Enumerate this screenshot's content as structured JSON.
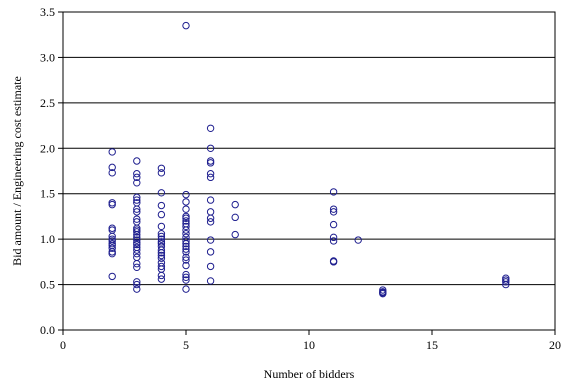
{
  "chart_data": {
    "type": "scatter",
    "title": "",
    "xlabel": "Number of bidders",
    "ylabel": "Bid amount / Engineering cost estimate",
    "xlim": [
      0,
      20
    ],
    "ylim": [
      0,
      3.5
    ],
    "xticks": [
      0,
      5,
      10,
      15,
      20
    ],
    "yticks": [
      0.0,
      0.5,
      1.0,
      1.5,
      2.0,
      2.5,
      3.0,
      3.5
    ],
    "xtick_labels": [
      "0",
      "5",
      "10",
      "15",
      "20"
    ],
    "ytick_labels": [
      "0.0",
      "0.5",
      "1.0",
      "1.5",
      "2.0",
      "2.5",
      "3.0",
      "3.5"
    ],
    "grid": "horizontal",
    "legend": "none",
    "marker": "open-circle",
    "marker_color": "#1f1f8f",
    "points": [
      {
        "x": 2,
        "y": 1.96
      },
      {
        "x": 2,
        "y": 1.79
      },
      {
        "x": 2,
        "y": 1.73
      },
      {
        "x": 2,
        "y": 1.4
      },
      {
        "x": 2,
        "y": 1.38
      },
      {
        "x": 2,
        "y": 1.12
      },
      {
        "x": 2,
        "y": 1.1
      },
      {
        "x": 2,
        "y": 1.03
      },
      {
        "x": 2,
        "y": 1.0
      },
      {
        "x": 2,
        "y": 0.98
      },
      {
        "x": 2,
        "y": 0.95
      },
      {
        "x": 2,
        "y": 0.93
      },
      {
        "x": 2,
        "y": 0.9
      },
      {
        "x": 2,
        "y": 0.86
      },
      {
        "x": 2,
        "y": 0.84
      },
      {
        "x": 2,
        "y": 0.59
      },
      {
        "x": 3,
        "y": 1.86
      },
      {
        "x": 3,
        "y": 1.72
      },
      {
        "x": 3,
        "y": 1.68
      },
      {
        "x": 3,
        "y": 1.62
      },
      {
        "x": 3,
        "y": 1.46
      },
      {
        "x": 3,
        "y": 1.43
      },
      {
        "x": 3,
        "y": 1.4
      },
      {
        "x": 3,
        "y": 1.33
      },
      {
        "x": 3,
        "y": 1.3
      },
      {
        "x": 3,
        "y": 1.22
      },
      {
        "x": 3,
        "y": 1.19
      },
      {
        "x": 3,
        "y": 1.12
      },
      {
        "x": 3,
        "y": 1.1
      },
      {
        "x": 3,
        "y": 1.08
      },
      {
        "x": 3,
        "y": 1.05
      },
      {
        "x": 3,
        "y": 1.02
      },
      {
        "x": 3,
        "y": 0.99
      },
      {
        "x": 3,
        "y": 0.96
      },
      {
        "x": 3,
        "y": 0.94
      },
      {
        "x": 3,
        "y": 0.91
      },
      {
        "x": 3,
        "y": 0.88
      },
      {
        "x": 3,
        "y": 0.84
      },
      {
        "x": 3,
        "y": 0.8
      },
      {
        "x": 3,
        "y": 0.73
      },
      {
        "x": 3,
        "y": 0.69
      },
      {
        "x": 3,
        "y": 0.53
      },
      {
        "x": 3,
        "y": 0.5
      },
      {
        "x": 3,
        "y": 0.45
      },
      {
        "x": 4,
        "y": 1.78
      },
      {
        "x": 4,
        "y": 1.73
      },
      {
        "x": 4,
        "y": 1.51
      },
      {
        "x": 4,
        "y": 1.37
      },
      {
        "x": 4,
        "y": 1.27
      },
      {
        "x": 4,
        "y": 1.14
      },
      {
        "x": 4,
        "y": 1.06
      },
      {
        "x": 4,
        "y": 1.03
      },
      {
        "x": 4,
        "y": 1.0
      },
      {
        "x": 4,
        "y": 0.97
      },
      {
        "x": 4,
        "y": 0.95
      },
      {
        "x": 4,
        "y": 0.92
      },
      {
        "x": 4,
        "y": 0.88
      },
      {
        "x": 4,
        "y": 0.85
      },
      {
        "x": 4,
        "y": 0.82
      },
      {
        "x": 4,
        "y": 0.79
      },
      {
        "x": 4,
        "y": 0.74
      },
      {
        "x": 4,
        "y": 0.7
      },
      {
        "x": 4,
        "y": 0.67
      },
      {
        "x": 4,
        "y": 0.6
      },
      {
        "x": 4,
        "y": 0.56
      },
      {
        "x": 5,
        "y": 3.35
      },
      {
        "x": 5,
        "y": 1.49
      },
      {
        "x": 5,
        "y": 1.41
      },
      {
        "x": 5,
        "y": 1.33
      },
      {
        "x": 5,
        "y": 1.25
      },
      {
        "x": 5,
        "y": 1.23
      },
      {
        "x": 5,
        "y": 1.2
      },
      {
        "x": 5,
        "y": 1.17
      },
      {
        "x": 5,
        "y": 1.14
      },
      {
        "x": 5,
        "y": 1.1
      },
      {
        "x": 5,
        "y": 1.06
      },
      {
        "x": 5,
        "y": 1.02
      },
      {
        "x": 5,
        "y": 0.98
      },
      {
        "x": 5,
        "y": 0.95
      },
      {
        "x": 5,
        "y": 0.92
      },
      {
        "x": 5,
        "y": 0.89
      },
      {
        "x": 5,
        "y": 0.86
      },
      {
        "x": 5,
        "y": 0.8
      },
      {
        "x": 5,
        "y": 0.77
      },
      {
        "x": 5,
        "y": 0.71
      },
      {
        "x": 5,
        "y": 0.61
      },
      {
        "x": 5,
        "y": 0.58
      },
      {
        "x": 5,
        "y": 0.55
      },
      {
        "x": 5,
        "y": 0.45
      },
      {
        "x": 6,
        "y": 2.22
      },
      {
        "x": 6,
        "y": 2.0
      },
      {
        "x": 6,
        "y": 1.86
      },
      {
        "x": 6,
        "y": 1.84
      },
      {
        "x": 6,
        "y": 1.72
      },
      {
        "x": 6,
        "y": 1.68
      },
      {
        "x": 6,
        "y": 1.43
      },
      {
        "x": 6,
        "y": 1.3
      },
      {
        "x": 6,
        "y": 1.23
      },
      {
        "x": 6,
        "y": 1.19
      },
      {
        "x": 6,
        "y": 0.99
      },
      {
        "x": 6,
        "y": 0.86
      },
      {
        "x": 6,
        "y": 0.7
      },
      {
        "x": 6,
        "y": 0.54
      },
      {
        "x": 7,
        "y": 1.38
      },
      {
        "x": 7,
        "y": 1.24
      },
      {
        "x": 7,
        "y": 1.05
      },
      {
        "x": 11,
        "y": 1.52
      },
      {
        "x": 11,
        "y": 1.33
      },
      {
        "x": 11,
        "y": 1.3
      },
      {
        "x": 11,
        "y": 1.16
      },
      {
        "x": 11,
        "y": 1.02
      },
      {
        "x": 11,
        "y": 0.98
      },
      {
        "x": 11,
        "y": 0.76
      },
      {
        "x": 11,
        "y": 0.75
      },
      {
        "x": 12,
        "y": 0.99
      },
      {
        "x": 13,
        "y": 0.44
      },
      {
        "x": 13,
        "y": 0.42
      },
      {
        "x": 13,
        "y": 0.41
      },
      {
        "x": 13,
        "y": 0.4
      },
      {
        "x": 18,
        "y": 0.57
      },
      {
        "x": 18,
        "y": 0.55
      },
      {
        "x": 18,
        "y": 0.53
      },
      {
        "x": 18,
        "y": 0.5
      }
    ]
  }
}
